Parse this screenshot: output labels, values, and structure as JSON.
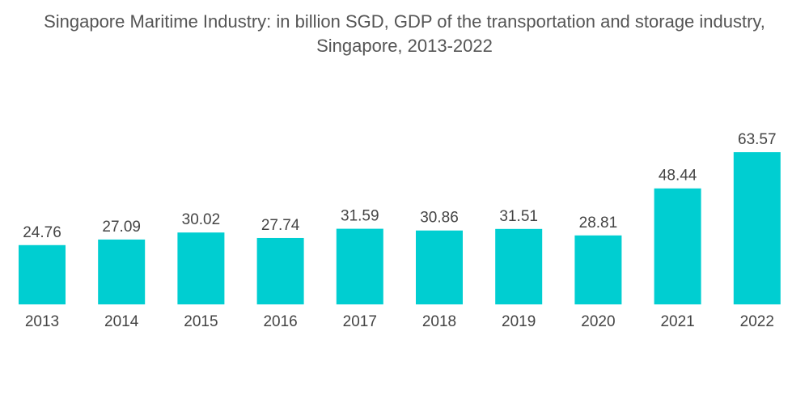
{
  "chart_data": {
    "type": "bar",
    "title_line1": "Singapore Maritime Industry: in billion SGD, GDP of the transportation and storage industry,",
    "title_line2": "Singapore, 2013-2022",
    "xlabel": "",
    "ylabel": "",
    "categories": [
      "2013",
      "2014",
      "2015",
      "2016",
      "2017",
      "2018",
      "2019",
      "2020",
      "2021",
      "2022"
    ],
    "values": [
      24.76,
      27.09,
      30.02,
      27.74,
      31.59,
      30.86,
      31.51,
      28.81,
      48.44,
      63.57
    ],
    "value_labels": [
      "24.76",
      "27.09",
      "30.02",
      "27.74",
      "31.59",
      "30.86",
      "31.51",
      "28.81",
      "48.44",
      "63.57"
    ],
    "ylim": [
      0,
      63.57
    ],
    "grid": false,
    "legend": "none",
    "bar_color": "#00CED1"
  }
}
